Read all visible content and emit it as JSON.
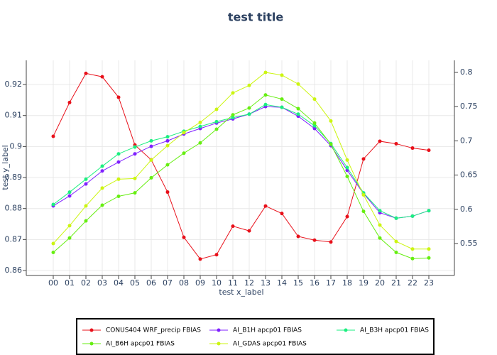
{
  "chart_data": {
    "type": "line",
    "title": "test title",
    "x_label": "test x_label",
    "y_label": "test y_label",
    "categories": [
      "00",
      "01",
      "02",
      "03",
      "04",
      "05",
      "06",
      "07",
      "08",
      "09",
      "10",
      "11",
      "12",
      "13",
      "14",
      "15",
      "16",
      "17",
      "18",
      "19",
      "20",
      "21",
      "22",
      "23"
    ],
    "ylim": [
      0.8584,
      0.9278
    ],
    "yticks": [
      0.86,
      0.87,
      0.88,
      0.89,
      {
        "value": 0.9,
        "label": "0.9"
      },
      0.91,
      0.92
    ],
    "y2lim": [
      0.5033,
      0.8176
    ],
    "y2ticks": [
      0.55,
      {
        "value": 0.6,
        "label": "0.6"
      },
      0.65,
      {
        "value": 0.7,
        "label": "0.7"
      },
      0.75,
      {
        "value": 0.8,
        "label": "0.8"
      }
    ],
    "grid": true,
    "series": [
      {
        "name": "CONUS404 WRF_precip FBIAS",
        "color": "#e8101a",
        "values": [
          0.9033,
          0.9142,
          0.9236,
          0.9225,
          0.9159,
          0.9005,
          0.8957,
          0.8853,
          0.8707,
          0.8637,
          0.8651,
          0.8743,
          0.8728,
          0.8808,
          0.8784,
          0.871,
          0.8698,
          0.8692,
          0.8774,
          0.896,
          0.9017,
          0.9009,
          0.8995,
          0.8988
        ]
      },
      {
        "name": "AI_B1H apcp01 FBIAS",
        "color": "#7f1fff",
        "axis": "y2",
        "values": [
          0.605,
          0.6195,
          0.637,
          0.656,
          0.669,
          0.681,
          0.692,
          0.7,
          0.71,
          0.718,
          0.726,
          0.732,
          0.739,
          0.75,
          0.749,
          0.736,
          0.718,
          0.693,
          0.657,
          0.623,
          0.595,
          0.587,
          0.59,
          0.598
        ]
      },
      {
        "name": "AI_B3H apcp01 FBIAS",
        "color": "#1bef80",
        "axis": "y2",
        "values": [
          0.607,
          0.625,
          0.644,
          0.663,
          0.681,
          0.691,
          0.7,
          0.706,
          0.714,
          0.721,
          0.728,
          0.734,
          0.739,
          0.753,
          0.749,
          0.739,
          0.722,
          0.696,
          0.661,
          0.624,
          0.598,
          0.587,
          0.59,
          0.598
        ]
      },
      {
        "name": "AI_B6H apcp01 FBIAS",
        "color": "#66ee11",
        "axis": "y2",
        "values": [
          0.537,
          0.558,
          0.583,
          0.606,
          0.619,
          0.624,
          0.646,
          0.665,
          0.682,
          0.697,
          0.717,
          0.738,
          0.748,
          0.767,
          0.761,
          0.747,
          0.726,
          0.695,
          0.648,
          0.597,
          0.558,
          0.537,
          0.528,
          0.529
        ]
      },
      {
        "name": "AI_GDAS apcp01 FBIAS",
        "color": "#ccf511",
        "axis": "y2",
        "values": [
          0.55,
          0.576,
          0.605,
          0.631,
          0.644,
          0.645,
          0.672,
          0.693,
          0.712,
          0.727,
          0.746,
          0.77,
          0.781,
          0.8,
          0.796,
          0.783,
          0.761,
          0.729,
          0.672,
          0.621,
          0.577,
          0.553,
          0.542,
          0.542
        ]
      }
    ]
  }
}
